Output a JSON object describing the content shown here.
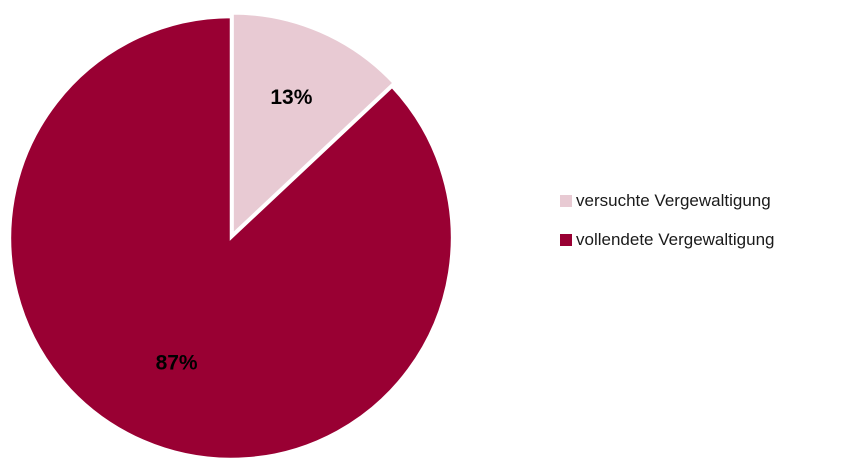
{
  "chart_data": {
    "type": "pie",
    "title": "",
    "slices": [
      {
        "label": "versuchte Vergewaltigung",
        "value": 13,
        "display": "13%",
        "color": "#E8CAD3"
      },
      {
        "label": "vollendete Vergewaltigung",
        "value": 87,
        "display": "87%",
        "color": "#990033"
      }
    ],
    "start_angle_deg": 0,
    "direction": "clockwise",
    "exploded_slice": "versuchte Vergewaltigung",
    "slice_border_color": "#ffffff",
    "legend_position": "right"
  }
}
